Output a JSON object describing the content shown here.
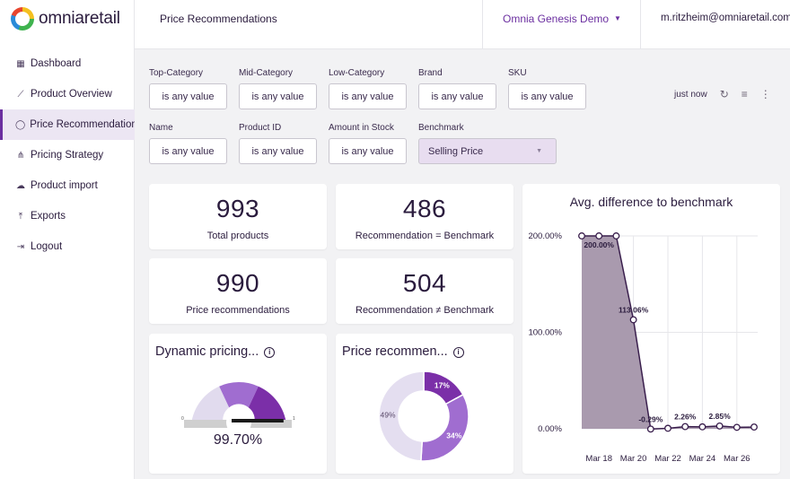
{
  "app": {
    "logo_text": "omniaretail"
  },
  "sidebar": {
    "items": [
      {
        "label": "Dashboard",
        "icon": "dashboard-icon",
        "glyph": "▦"
      },
      {
        "label": "Product Overview",
        "icon": "trend-icon",
        "glyph": "⟋"
      },
      {
        "label": "Price Recommendations",
        "icon": "tag-icon",
        "glyph": "◯"
      },
      {
        "label": "Pricing Strategy",
        "icon": "strategy-icon",
        "glyph": "⋔"
      },
      {
        "label": "Product import",
        "icon": "cloud-upload-icon",
        "glyph": "☁"
      },
      {
        "label": "Exports",
        "icon": "export-icon",
        "glyph": "⤒"
      },
      {
        "label": "Logout",
        "icon": "logout-icon",
        "glyph": "⇥"
      }
    ]
  },
  "header": {
    "title": "Price Recommendations",
    "demo_selector": "Omnia Genesis Demo",
    "user_email": "m.ritzheim@omniaretail.com"
  },
  "filters": {
    "row1": [
      {
        "label": "Top-Category",
        "value": "is any value"
      },
      {
        "label": "Mid-Category",
        "value": "is any value"
      },
      {
        "label": "Low-Category",
        "value": "is any value"
      },
      {
        "label": "Brand",
        "value": "is any value"
      },
      {
        "label": "SKU",
        "value": "is any value"
      }
    ],
    "row2": [
      {
        "label": "Name",
        "value": "is any value"
      },
      {
        "label": "Product ID",
        "value": "is any value"
      },
      {
        "label": "Amount in Stock",
        "value": "is any value"
      }
    ],
    "benchmark": {
      "label": "Benchmark",
      "value": "Selling Price"
    },
    "refresh_text": "just now"
  },
  "kpis": {
    "total_products": {
      "value": "993",
      "label": "Total products"
    },
    "rec_equal": {
      "value": "486",
      "label": "Recommendation = Benchmark"
    },
    "price_recs": {
      "value": "990",
      "label": "Price recommendations"
    },
    "rec_not_equal": {
      "value": "504",
      "label": "Recommendation ≠ Benchmark"
    }
  },
  "gauge": {
    "title": "Dynamic pricing...",
    "value_text": "99.70%",
    "value": 0.997,
    "min_label": "0",
    "max_label": "1"
  },
  "donut": {
    "title": "Price recommen...",
    "slices": [
      {
        "label": "17%",
        "value": 17,
        "color": "#7b2fa8"
      },
      {
        "label": "34%",
        "value": 34,
        "color": "#a06dd0"
      },
      {
        "label": "49%",
        "value": 49,
        "color": "#e4def0"
      }
    ]
  },
  "chart_data": {
    "type": "area",
    "title": "Avg. difference to benchmark",
    "x": [
      "Mar 17",
      "Mar 18",
      "Mar 19",
      "Mar 20",
      "Mar 21",
      "Mar 22",
      "Mar 23",
      "Mar 24",
      "Mar 25",
      "Mar 26",
      "Mar 27"
    ],
    "values": [
      200.0,
      200.0,
      200.0,
      113.06,
      -0.29,
      0.5,
      2.26,
      2.0,
      2.85,
      1.5,
      1.8
    ],
    "point_labels": [
      {
        "index": 1,
        "text": "200.00%"
      },
      {
        "index": 3,
        "text": "113.06%"
      },
      {
        "index": 4,
        "text": "-0.29%"
      },
      {
        "index": 6,
        "text": "2.26%"
      },
      {
        "index": 8,
        "text": "2.85%"
      }
    ],
    "x_tick_labels": [
      "Mar 18",
      "Mar 20",
      "Mar 22",
      "Mar 24",
      "Mar 26"
    ],
    "x_tick_indices": [
      1,
      3,
      5,
      7,
      9
    ],
    "y_ticks": [
      0,
      100,
      200
    ],
    "y_tick_labels": [
      "0.00%",
      "100.00%",
      "200.00%"
    ],
    "ylim": [
      0,
      200
    ],
    "fill_color": "#a99aae",
    "line_color": "#3a1f4d"
  }
}
